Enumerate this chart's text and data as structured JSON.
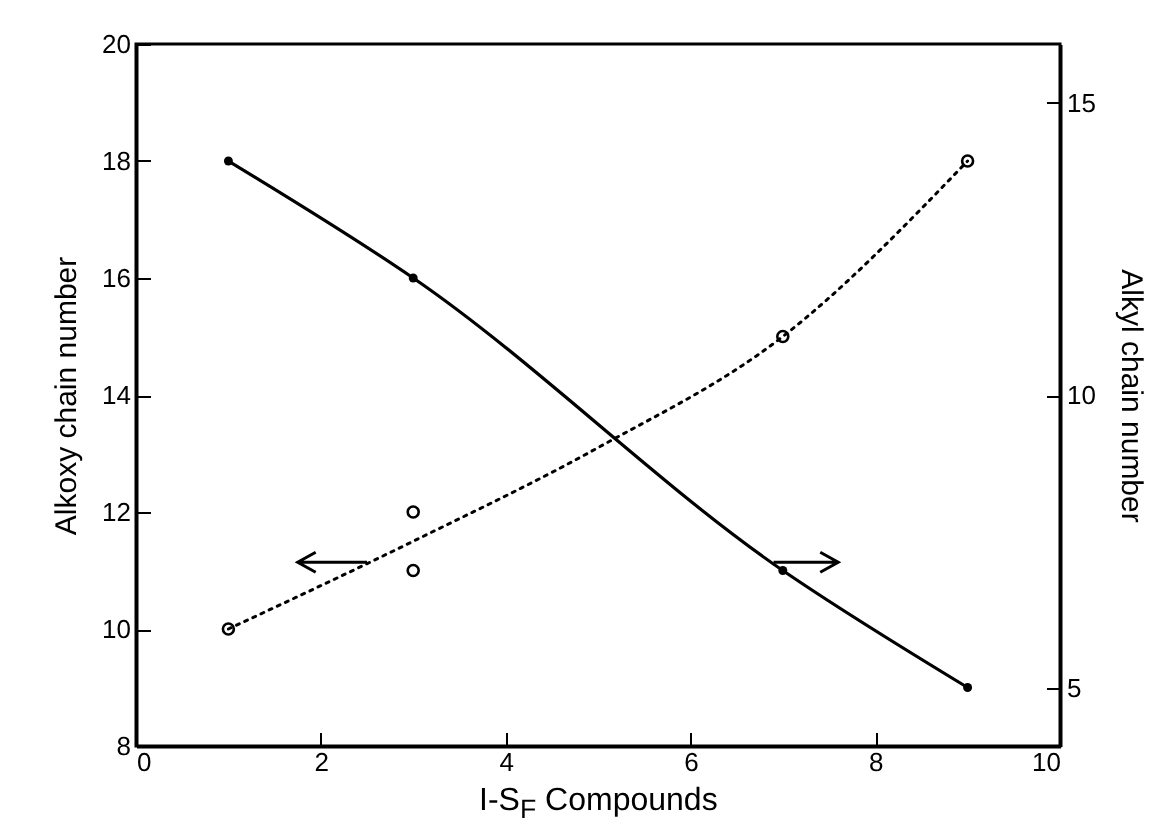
{
  "chart_data": {
    "type": "line",
    "xlabel": "I-S$_{F}$ Compounds",
    "ylabel": "Alkoxy chain number",
    "y2label": "Alkyl chain number",
    "xlim": [
      0,
      10
    ],
    "xticks": [
      0,
      2,
      4,
      6,
      8,
      10
    ],
    "ylim": [
      8,
      20
    ],
    "yticks": [
      8,
      10,
      12,
      14,
      16,
      18,
      20
    ],
    "y2lim": [
      4,
      16
    ],
    "y2ticks": [
      5,
      10,
      15
    ],
    "series": [
      {
        "type": "scatter",
        "color": "#000000",
        "marker": "circle",
        "x": [
          1,
          3,
          3,
          7,
          9
        ],
        "values": [
          10,
          11,
          12,
          15,
          18
        ]
      },
      {
        "type": "line",
        "color": "#000000",
        "line_style": "dotted",
        "x": [
          1,
          3,
          5,
          7,
          9
        ],
        "values": [
          10,
          11.5,
          13.1,
          15,
          18
        ]
      },
      {
        "type": "line",
        "color": "#000000",
        "axis": "y2",
        "line_style": "solid",
        "marker": "circle",
        "x": [
          1,
          3,
          7,
          9
        ],
        "values": [
          14,
          12,
          7,
          5
        ]
      }
    ]
  }
}
